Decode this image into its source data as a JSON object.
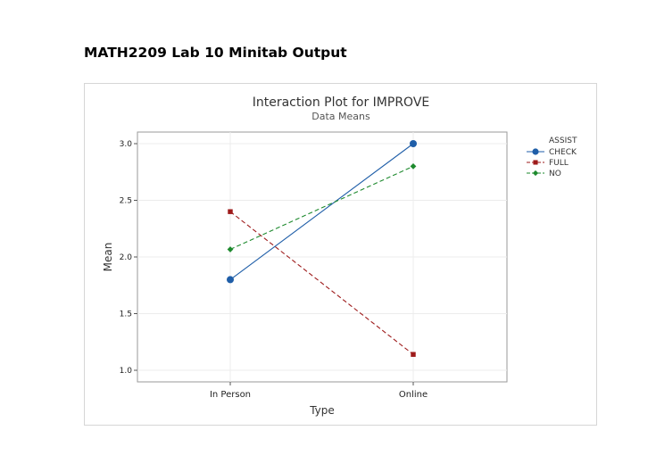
{
  "document": {
    "heading": "MATH2209 Lab 10 Minitab Output"
  },
  "chart_data": {
    "type": "line",
    "title": "Interaction Plot for IMPROVE",
    "subtitle": "Data Means",
    "xlabel": "Type",
    "ylabel": "Mean",
    "categories": [
      "In Person",
      "Online"
    ],
    "ylim": [
      1.0,
      3.0
    ],
    "yticks": [
      "1.0",
      "1.5",
      "2.0",
      "2.5",
      "3.0"
    ],
    "grid": true,
    "legend_title": "ASSIST",
    "legend_position": "top-right",
    "series": [
      {
        "name": "CHECK",
        "values": [
          1.8,
          3.0
        ],
        "color": "#1f5ea8",
        "marker": "circle",
        "dash": "solid"
      },
      {
        "name": "FULL",
        "values": [
          2.4,
          1.14
        ],
        "color": "#9e1b1b",
        "marker": "square",
        "dash": "dashed"
      },
      {
        "name": "NO",
        "values": [
          2.067,
          2.8
        ],
        "color": "#1e8a2e",
        "marker": "diamond",
        "dash": "dashed"
      }
    ]
  }
}
